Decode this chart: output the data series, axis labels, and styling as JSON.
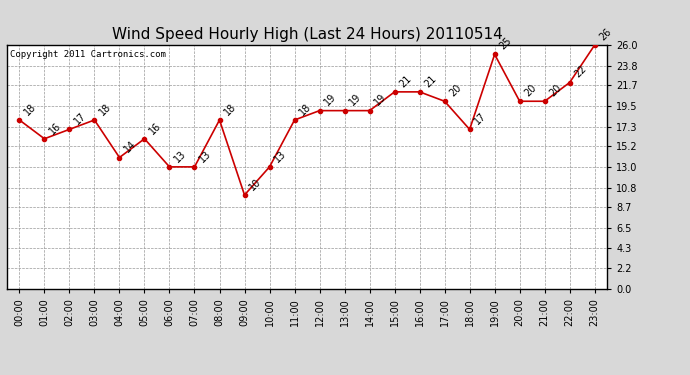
{
  "title": "Wind Speed Hourly High (Last 24 Hours) 20110514",
  "copyright": "Copyright 2011 Cartronics.com",
  "hours": [
    "00:00",
    "01:00",
    "02:00",
    "03:00",
    "04:00",
    "05:00",
    "06:00",
    "07:00",
    "08:00",
    "09:00",
    "10:00",
    "11:00",
    "12:00",
    "13:00",
    "14:00",
    "15:00",
    "16:00",
    "17:00",
    "18:00",
    "19:00",
    "20:00",
    "21:00",
    "22:00",
    "23:00"
  ],
  "values": [
    18,
    16,
    17,
    18,
    14,
    16,
    13,
    13,
    18,
    10,
    13,
    18,
    19,
    19,
    19,
    21,
    21,
    20,
    17,
    25,
    20,
    20,
    22,
    26
  ],
  "line_color": "#cc0000",
  "marker_color": "#cc0000",
  "outer_bg_color": "#d8d8d8",
  "plot_bg_color": "#ffffff",
  "grid_color": "#999999",
  "title_fontsize": 11,
  "ytick_labels": [
    "0.0",
    "2.2",
    "4.3",
    "6.5",
    "8.7",
    "10.8",
    "13.0",
    "15.2",
    "17.3",
    "19.5",
    "21.7",
    "23.8",
    "26.0"
  ],
  "ytick_values": [
    0.0,
    2.2,
    4.3,
    6.5,
    8.7,
    10.8,
    13.0,
    15.2,
    17.3,
    19.5,
    21.7,
    23.8,
    26.0
  ],
  "ylim": [
    0.0,
    26.0
  ],
  "annotation_fontsize": 7,
  "tick_fontsize": 7,
  "copyright_fontsize": 6.5
}
